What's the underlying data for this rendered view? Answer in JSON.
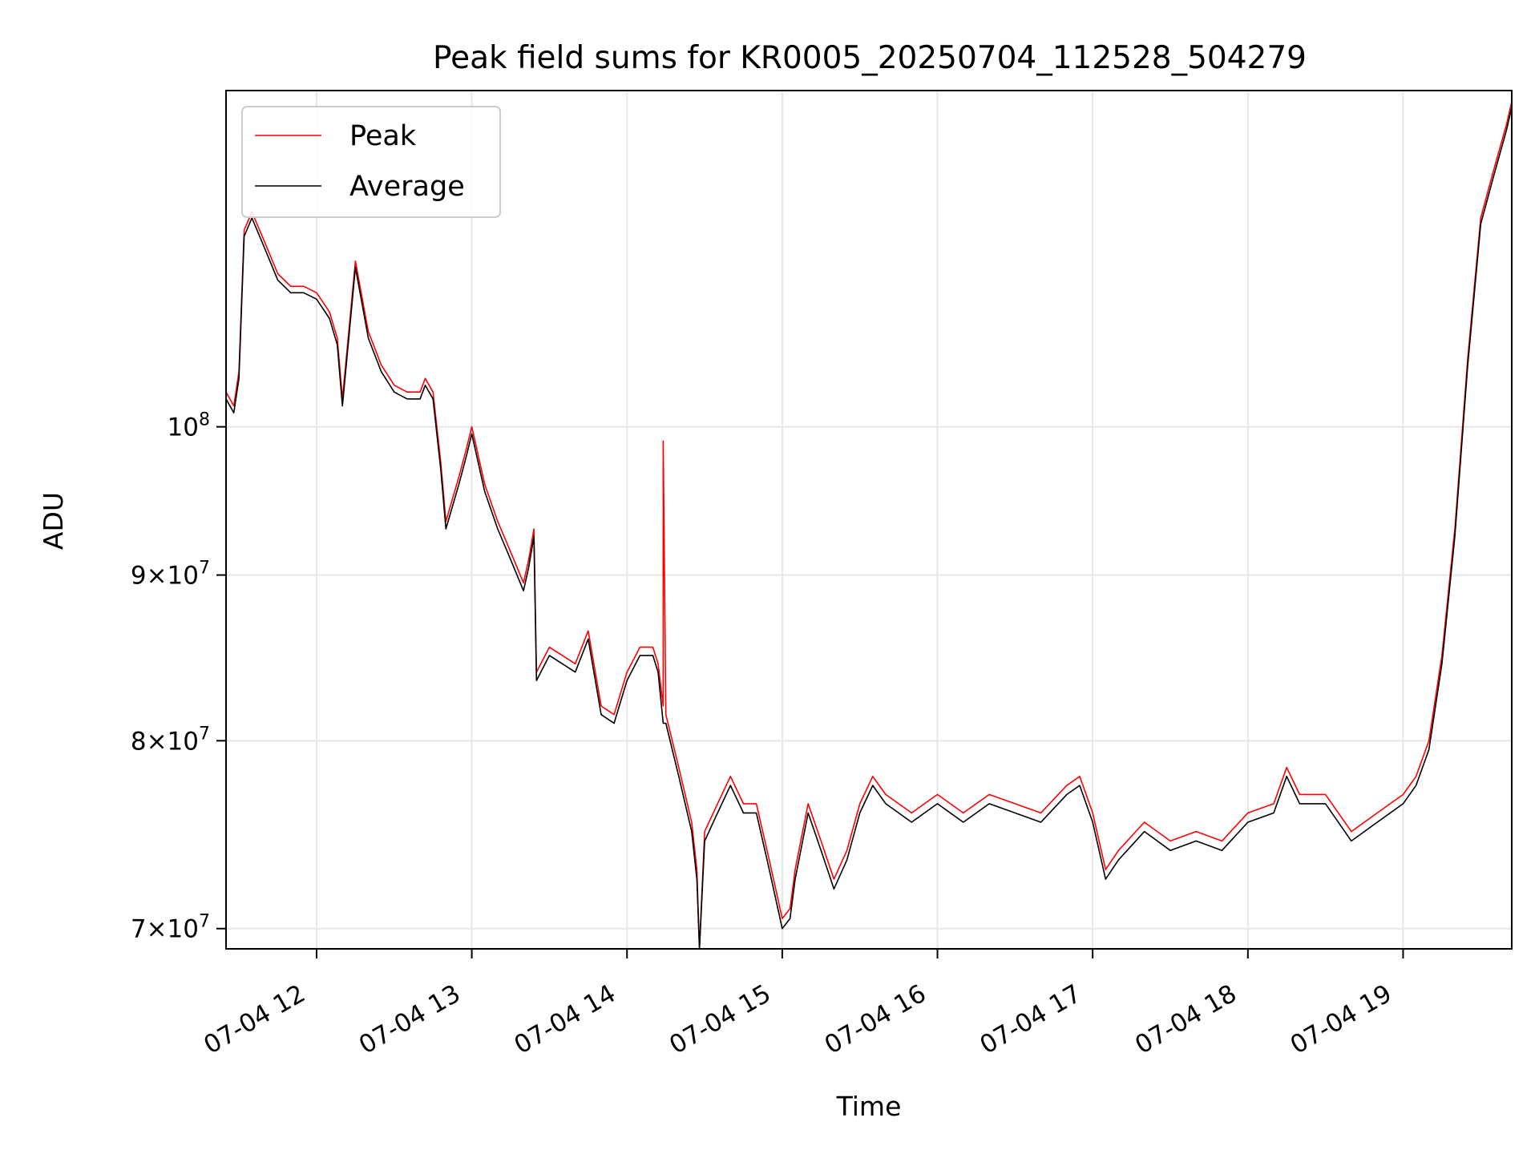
{
  "chart_data": {
    "type": "line",
    "title": "Peak field sums for KR0005_20250704_112528_504279",
    "xlabel": "Time",
    "ylabel": "ADU",
    "x_range": [
      "07-04 11:25",
      "07-04 19:42"
    ],
    "y_scale": "log",
    "ylim": [
      69000000,
      127000000
    ],
    "grid": true,
    "legend_position": "upper left",
    "x_ticks": [
      {
        "value": "07-04 12:00",
        "label": "07-04 12"
      },
      {
        "value": "07-04 13:00",
        "label": "07-04 13"
      },
      {
        "value": "07-04 14:00",
        "label": "07-04 14"
      },
      {
        "value": "07-04 15:00",
        "label": "07-04 15"
      },
      {
        "value": "07-04 16:00",
        "label": "07-04 16"
      },
      {
        "value": "07-04 17:00",
        "label": "07-04 17"
      },
      {
        "value": "07-04 18:00",
        "label": "07-04 18"
      },
      {
        "value": "07-04 19:00",
        "label": "07-04 19"
      }
    ],
    "y_ticks": [
      {
        "value": 70000000,
        "mantissa": "7",
        "exponent": "7"
      },
      {
        "value": 80000000,
        "mantissa": "8",
        "exponent": "7"
      },
      {
        "value": 90000000,
        "mantissa": "9",
        "exponent": "7"
      },
      {
        "value": 100000000,
        "mantissa": "",
        "exponent": "8"
      }
    ],
    "series": [
      {
        "name": "Peak",
        "color": "#ff0000",
        "x": [
          "07-04 11:25",
          "07-04 11:28",
          "07-04 11:30",
          "07-04 11:32",
          "07-04 11:35",
          "07-04 11:40",
          "07-04 11:45",
          "07-04 11:50",
          "07-04 11:55",
          "07-04 12:00",
          "07-04 12:05",
          "07-04 12:08",
          "07-04 12:10",
          "07-04 12:15",
          "07-04 12:20",
          "07-04 12:25",
          "07-04 12:30",
          "07-04 12:35",
          "07-04 12:40",
          "07-04 12:42",
          "07-04 12:45",
          "07-04 12:48",
          "07-04 12:50",
          "07-04 12:55",
          "07-04 12:58",
          "07-04 13:00",
          "07-04 13:05",
          "07-04 13:10",
          "07-04 13:15",
          "07-04 13:20",
          "07-04 13:22",
          "07-04 13:24",
          "07-04 13:25",
          "07-04 13:30",
          "07-04 13:35",
          "07-04 13:40",
          "07-04 13:45",
          "07-04 13:50",
          "07-04 13:55",
          "07-04 14:00",
          "07-04 14:05",
          "07-04 14:10",
          "07-04 14:12",
          "07-04 14:14",
          "07-04 14:14",
          "07-04 14:15",
          "07-04 14:20",
          "07-04 14:25",
          "07-04 14:27",
          "07-04 14:28",
          "07-04 14:30",
          "07-04 14:35",
          "07-04 14:40",
          "07-04 14:45",
          "07-04 14:50",
          "07-04 14:55",
          "07-04 15:00",
          "07-04 15:03",
          "07-04 15:05",
          "07-04 15:10",
          "07-04 15:15",
          "07-04 15:20",
          "07-04 15:25",
          "07-04 15:30",
          "07-04 15:35",
          "07-04 15:40",
          "07-04 15:45",
          "07-04 15:50",
          "07-04 15:55",
          "07-04 16:00",
          "07-04 16:10",
          "07-04 16:20",
          "07-04 16:30",
          "07-04 16:40",
          "07-04 16:50",
          "07-04 16:55",
          "07-04 17:00",
          "07-04 17:05",
          "07-04 17:10",
          "07-04 17:20",
          "07-04 17:30",
          "07-04 17:40",
          "07-04 17:50",
          "07-04 18:00",
          "07-04 18:10",
          "07-04 18:15",
          "07-04 18:20",
          "07-04 18:30",
          "07-04 18:40",
          "07-04 18:50",
          "07-04 19:00",
          "07-04 19:05",
          "07-04 19:10",
          "07-04 19:15",
          "07-04 19:20",
          "07-04 19:25",
          "07-04 19:30",
          "07-04 19:35",
          "07-04 19:40",
          "07-04 19:42"
        ],
        "values": [
          102500000,
          101500000,
          104000000,
          115000000,
          116500000,
          114000000,
          111500000,
          110500000,
          110500000,
          110000000,
          108500000,
          106500000,
          102000000,
          112500000,
          107000000,
          104500000,
          103000000,
          102500000,
          102500000,
          103500000,
          102500000,
          97500000,
          93500000,
          96500000,
          98500000,
          100000000,
          96000000,
          93500000,
          91500000,
          89500000,
          91000000,
          93000000,
          84000000,
          85500000,
          85000000,
          84500000,
          86500000,
          82000000,
          81500000,
          84000000,
          85500000,
          85500000,
          84500000,
          82000000,
          99000000,
          81500000,
          78500000,
          75500000,
          73000000,
          69000000,
          75000000,
          76500000,
          78000000,
          76500000,
          76500000,
          73500000,
          70500000,
          71000000,
          73000000,
          76500000,
          74500000,
          72500000,
          74000000,
          76500000,
          78000000,
          77000000,
          76500000,
          76000000,
          76500000,
          77000000,
          76000000,
          77000000,
          76500000,
          76000000,
          77500000,
          78000000,
          76000000,
          73000000,
          74000000,
          75500000,
          74500000,
          75000000,
          74500000,
          76000000,
          76500000,
          78500000,
          77000000,
          77000000,
          75000000,
          76000000,
          77000000,
          78000000,
          80000000,
          85000000,
          93000000,
          105000000,
          116000000,
          120000000,
          124000000,
          126000000
        ]
      },
      {
        "name": "Average",
        "color": "#000000",
        "x": [
          "07-04 11:25",
          "07-04 11:28",
          "07-04 11:30",
          "07-04 11:32",
          "07-04 11:35",
          "07-04 11:40",
          "07-04 11:45",
          "07-04 11:50",
          "07-04 11:55",
          "07-04 12:00",
          "07-04 12:05",
          "07-04 12:08",
          "07-04 12:10",
          "07-04 12:15",
          "07-04 12:20",
          "07-04 12:25",
          "07-04 12:30",
          "07-04 12:35",
          "07-04 12:40",
          "07-04 12:42",
          "07-04 12:45",
          "07-04 12:48",
          "07-04 12:50",
          "07-04 12:55",
          "07-04 12:58",
          "07-04 13:00",
          "07-04 13:05",
          "07-04 13:10",
          "07-04 13:15",
          "07-04 13:20",
          "07-04 13:22",
          "07-04 13:24",
          "07-04 13:25",
          "07-04 13:30",
          "07-04 13:35",
          "07-04 13:40",
          "07-04 13:45",
          "07-04 13:50",
          "07-04 13:55",
          "07-04 14:00",
          "07-04 14:05",
          "07-04 14:10",
          "07-04 14:12",
          "07-04 14:14",
          "07-04 14:15",
          "07-04 14:20",
          "07-04 14:25",
          "07-04 14:27",
          "07-04 14:28",
          "07-04 14:30",
          "07-04 14:35",
          "07-04 14:40",
          "07-04 14:45",
          "07-04 14:50",
          "07-04 14:55",
          "07-04 15:00",
          "07-04 15:03",
          "07-04 15:05",
          "07-04 15:10",
          "07-04 15:15",
          "07-04 15:20",
          "07-04 15:25",
          "07-04 15:30",
          "07-04 15:35",
          "07-04 15:40",
          "07-04 15:45",
          "07-04 15:50",
          "07-04 15:55",
          "07-04 16:00",
          "07-04 16:10",
          "07-04 16:20",
          "07-04 16:30",
          "07-04 16:40",
          "07-04 16:50",
          "07-04 16:55",
          "07-04 17:00",
          "07-04 17:05",
          "07-04 17:10",
          "07-04 17:20",
          "07-04 17:30",
          "07-04 17:40",
          "07-04 17:50",
          "07-04 18:00",
          "07-04 18:10",
          "07-04 18:15",
          "07-04 18:20",
          "07-04 18:30",
          "07-04 18:40",
          "07-04 18:50",
          "07-04 19:00",
          "07-04 19:05",
          "07-04 19:10",
          "07-04 19:15",
          "07-04 19:20",
          "07-04 19:25",
          "07-04 19:30",
          "07-04 19:35",
          "07-04 19:40",
          "07-04 19:42"
        ],
        "values": [
          102000000,
          101000000,
          103500000,
          114500000,
          116000000,
          113500000,
          111000000,
          110000000,
          110000000,
          109500000,
          108000000,
          106000000,
          101500000,
          112000000,
          106500000,
          104000000,
          102500000,
          102000000,
          102000000,
          103000000,
          102000000,
          97000000,
          93000000,
          96000000,
          98000000,
          99500000,
          95500000,
          93000000,
          91000000,
          89000000,
          90500000,
          92500000,
          83500000,
          85000000,
          84500000,
          84000000,
          86000000,
          81500000,
          81000000,
          83500000,
          85000000,
          85000000,
          84000000,
          81000000,
          81000000,
          78000000,
          75000000,
          72500000,
          68500000,
          74500000,
          76000000,
          77500000,
          76000000,
          76000000,
          73000000,
          70000000,
          70500000,
          72500000,
          76000000,
          74000000,
          72000000,
          73500000,
          76000000,
          77500000,
          76500000,
          76000000,
          75500000,
          76000000,
          76500000,
          75500000,
          76500000,
          76000000,
          75500000,
          77000000,
          77500000,
          75500000,
          72500000,
          73500000,
          75000000,
          74000000,
          74500000,
          74000000,
          75500000,
          76000000,
          78000000,
          76500000,
          76500000,
          74500000,
          75500000,
          76500000,
          77500000,
          79500000,
          84500000,
          92500000,
          104500000,
          115500000,
          119500000,
          123500000,
          125500000
        ]
      }
    ]
  }
}
